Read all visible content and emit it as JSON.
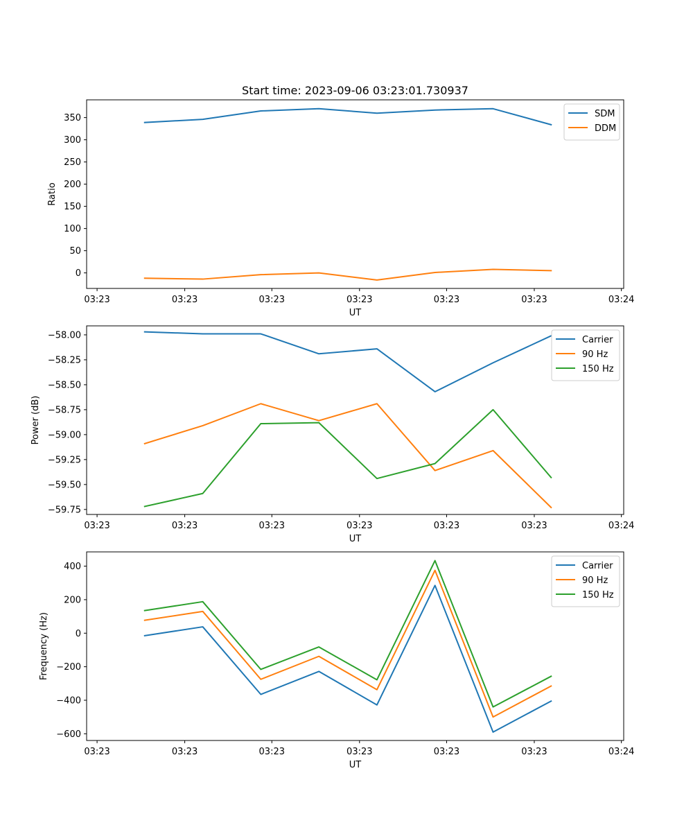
{
  "title": "Start time: 2023-09-06 03:23:01.730937",
  "colors": {
    "blue": "#1f77b4",
    "orange": "#ff7f0e",
    "green": "#2ca02c"
  },
  "chart_data": [
    {
      "type": "line",
      "title": "Start time: 2023-09-06 03:23:01.730937",
      "xlabel": "UT",
      "ylabel": "Ratio",
      "x": [
        1,
        2,
        3,
        4,
        5,
        6,
        7,
        8
      ],
      "xlim": [
        0,
        9.25
      ],
      "xticks": [
        0.18,
        1.69,
        3.19,
        4.7,
        6.2,
        7.71,
        9.21
      ],
      "xtick_labels": [
        "03:23",
        "03:23",
        "03:23",
        "03:23",
        "03:23",
        "03:23",
        "03:24"
      ],
      "ylim": [
        -35,
        390
      ],
      "yticks": [
        0,
        50,
        100,
        150,
        200,
        250,
        300,
        350
      ],
      "ytick_labels": [
        "0",
        "50",
        "100",
        "150",
        "200",
        "250",
        "300",
        "350"
      ],
      "legend": "top-right",
      "series": [
        {
          "name": "SDM",
          "color": "#1f77b4",
          "values": [
            339,
            346,
            365,
            370,
            360,
            367,
            370,
            334
          ]
        },
        {
          "name": "DDM",
          "color": "#ff7f0e",
          "values": [
            -12,
            -14,
            -4,
            0,
            -16,
            1,
            8,
            5
          ]
        }
      ]
    },
    {
      "type": "line",
      "title": "",
      "xlabel": "UT",
      "ylabel": "Power (dB)",
      "x": [
        1,
        2,
        3,
        4,
        5,
        6,
        7,
        8
      ],
      "xlim": [
        0,
        9.25
      ],
      "xticks": [
        0.18,
        1.69,
        3.19,
        4.7,
        6.2,
        7.71,
        9.21
      ],
      "xtick_labels": [
        "03:23",
        "03:23",
        "03:23",
        "03:23",
        "03:23",
        "03:23",
        "03:24"
      ],
      "ylim": [
        -59.8,
        -57.91
      ],
      "yticks": [
        -59.75,
        -59.5,
        -59.25,
        -59.0,
        -58.75,
        -58.5,
        -58.25,
        -58.0
      ],
      "ytick_labels": [
        "−59.75",
        "−59.50",
        "−59.25",
        "−59.00",
        "−58.75",
        "−58.50",
        "−58.25",
        "−58.00"
      ],
      "legend": "top-right",
      "series": [
        {
          "name": "Carrier",
          "color": "#1f77b4",
          "values": [
            -57.97,
            -57.99,
            -57.99,
            -58.19,
            -58.14,
            -58.57,
            -58.28,
            -58.01
          ]
        },
        {
          "name": "90 Hz",
          "color": "#ff7f0e",
          "values": [
            -59.09,
            -58.91,
            -58.69,
            -58.86,
            -58.69,
            -59.36,
            -59.16,
            -59.73
          ]
        },
        {
          "name": "150 Hz",
          "color": "#2ca02c",
          "values": [
            -59.72,
            -59.59,
            -58.89,
            -58.88,
            -59.44,
            -59.29,
            -58.75,
            -59.43
          ]
        }
      ]
    },
    {
      "type": "line",
      "title": "",
      "xlabel": "UT",
      "ylabel": "Frequency (Hz)",
      "x": [
        1,
        2,
        3,
        4,
        5,
        6,
        7,
        8
      ],
      "xlim": [
        0,
        9.25
      ],
      "xticks": [
        0.18,
        1.69,
        3.19,
        4.7,
        6.2,
        7.71,
        9.21
      ],
      "xtick_labels": [
        "03:23",
        "03:23",
        "03:23",
        "03:23",
        "03:23",
        "03:23",
        "03:24"
      ],
      "ylim": [
        -640,
        485
      ],
      "yticks": [
        -600,
        -400,
        -200,
        0,
        200,
        400
      ],
      "ytick_labels": [
        "−600",
        "−400",
        "−200",
        "0",
        "200",
        "400"
      ],
      "legend": "top-right",
      "series": [
        {
          "name": "Carrier",
          "color": "#1f77b4",
          "values": [
            -15,
            38,
            -365,
            -228,
            -428,
            285,
            -590,
            -405
          ]
        },
        {
          "name": "90 Hz",
          "color": "#ff7f0e",
          "values": [
            77,
            130,
            -275,
            -138,
            -337,
            375,
            -500,
            -315
          ]
        },
        {
          "name": "150 Hz",
          "color": "#2ca02c",
          "values": [
            135,
            188,
            -216,
            -82,
            -278,
            433,
            -440,
            -257
          ]
        }
      ]
    }
  ]
}
